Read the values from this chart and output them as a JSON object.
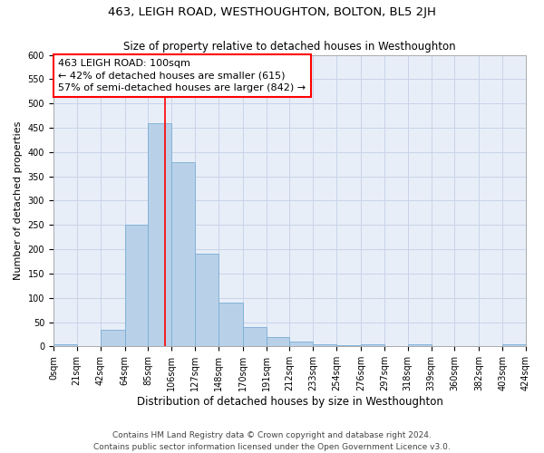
{
  "title": "463, LEIGH ROAD, WESTHOUGHTON, BOLTON, BL5 2JH",
  "subtitle": "Size of property relative to detached houses in Westhoughton",
  "xlabel": "Distribution of detached houses by size in Westhoughton",
  "ylabel": "Number of detached properties",
  "bin_edges": [
    0,
    21,
    42,
    64,
    85,
    106,
    127,
    148,
    170,
    191,
    212,
    233,
    254,
    276,
    297,
    318,
    339,
    360,
    382,
    403,
    424
  ],
  "bin_counts": [
    4,
    0,
    35,
    250,
    460,
    380,
    190,
    90,
    40,
    20,
    10,
    5,
    2,
    4,
    0,
    5,
    0,
    0,
    0,
    4
  ],
  "bar_color": "#b8d0e8",
  "bar_edge_color": "#7aaed6",
  "grid_color": "#c8d4e8",
  "bg_color": "#e8eef8",
  "vline_x": 100,
  "vline_color": "red",
  "annotation_text": "463 LEIGH ROAD: 100sqm\n← 42% of detached houses are smaller (615)\n57% of semi-detached houses are larger (842) →",
  "annotation_box_color": "white",
  "annotation_box_edge_color": "red",
  "ylim": [
    0,
    600
  ],
  "yticks": [
    0,
    50,
    100,
    150,
    200,
    250,
    300,
    350,
    400,
    450,
    500,
    550,
    600
  ],
  "tick_labels": [
    "0sqm",
    "21sqm",
    "42sqm",
    "64sqm",
    "85sqm",
    "106sqm",
    "127sqm",
    "148sqm",
    "170sqm",
    "191sqm",
    "212sqm",
    "233sqm",
    "254sqm",
    "276sqm",
    "297sqm",
    "318sqm",
    "339sqm",
    "360sqm",
    "382sqm",
    "403sqm",
    "424sqm"
  ],
  "footer": "Contains HM Land Registry data © Crown copyright and database right 2024.\nContains public sector information licensed under the Open Government Licence v3.0.",
  "title_fontsize": 9.5,
  "subtitle_fontsize": 8.5,
  "xlabel_fontsize": 8.5,
  "ylabel_fontsize": 8,
  "tick_fontsize": 7,
  "annotation_fontsize": 8,
  "footer_fontsize": 6.5
}
